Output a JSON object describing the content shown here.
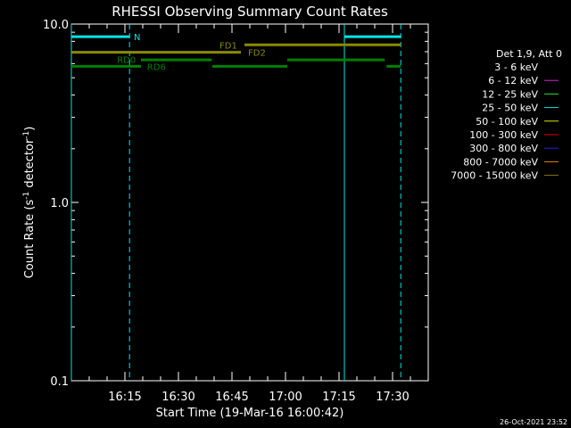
{
  "chart_data": {
    "type": "line",
    "title": "RHESSI Observing Summary Count Rates",
    "xlabel": "Start Time (19-Mar-16 16:00:42)",
    "ylabel_parts": [
      "Count Rate (s",
      "-1",
      " detector",
      "-1",
      ")"
    ],
    "footer_date": "26-Oct-2021 23:52",
    "y_scale": "log",
    "ylim": [
      0.1,
      10.0
    ],
    "y_ticks": [
      {
        "value": 0.1,
        "label": "0.1"
      },
      {
        "value": 1.0,
        "label": "1.0"
      },
      {
        "value": 10.0,
        "label": "10.0"
      }
    ],
    "x_range_minutes": [
      0,
      100
    ],
    "x_ticks": [
      {
        "minute": 15,
        "label": "16:15"
      },
      {
        "minute": 30,
        "label": "16:30"
      },
      {
        "minute": 45,
        "label": "16:45"
      },
      {
        "minute": 60,
        "label": "17:00"
      },
      {
        "minute": 75,
        "label": "17:15"
      },
      {
        "minute": 90,
        "label": "17:30"
      }
    ],
    "legend": {
      "header": "Det 1,9, Att 0",
      "entries": [
        {
          "label": "3 - 6 keV",
          "color": "#000000"
        },
        {
          "label": "6 - 12 keV",
          "color": "#d12bd1"
        },
        {
          "label": "12 - 25 keV",
          "color": "#2ee02e"
        },
        {
          "label": "25 - 50 keV",
          "color": "#00e5e5"
        },
        {
          "label": "50 - 100 keV",
          "color": "#e5e500"
        },
        {
          "label": "100 - 300 keV",
          "color": "#e50000"
        },
        {
          "label": "300 - 800 keV",
          "color": "#2020e5"
        },
        {
          "label": "800 - 7000 keV",
          "color": "#e58a00"
        },
        {
          "label": "7000 - 15000 keV",
          "color": "#8a7a00"
        }
      ]
    },
    "colors": {
      "night": "#00e5e5",
      "flare": "#8a8a00",
      "rd": "#008000"
    },
    "night_lines": [
      {
        "minute": 0,
        "style": "solid"
      },
      {
        "minute": 16.3,
        "style": "dashed"
      },
      {
        "minute": 76.5,
        "style": "solid"
      },
      {
        "minute": 92.3,
        "style": "dashed"
      }
    ],
    "segments": [
      {
        "kind": "night",
        "y": 8.5,
        "x0": 0,
        "x1": 16.3
      },
      {
        "kind": "night",
        "y": 8.5,
        "x0": 76.5,
        "x1": 92.3
      },
      {
        "kind": "flare",
        "y": 6.95,
        "x0": 0,
        "x1": 47.5
      },
      {
        "kind": "flare",
        "y": 7.65,
        "x0": 48.5,
        "x1": 92.3
      },
      {
        "kind": "rd",
        "y": 6.3,
        "x0": 19.5,
        "x1": 39.3
      },
      {
        "kind": "rd",
        "y": 6.3,
        "x0": 60.5,
        "x1": 87.8
      },
      {
        "kind": "rd",
        "y": 5.8,
        "x0": 0,
        "x1": 19.5
      },
      {
        "kind": "rd",
        "y": 5.8,
        "x0": 39.5,
        "x1": 60.5
      },
      {
        "kind": "rd",
        "y": 5.8,
        "x0": 88.3,
        "x1": 92.3
      }
    ],
    "labels": [
      {
        "text": "N",
        "kind": "night",
        "x": 17.5,
        "y": 8.5
      },
      {
        "text": "FD1",
        "kind": "flare",
        "x": 41.5,
        "y": 7.65
      },
      {
        "text": "FD2",
        "kind": "flare",
        "x": 49.5,
        "y": 6.95
      },
      {
        "text": "RD0",
        "kind": "rd",
        "x": 12.8,
        "y": 6.35
      },
      {
        "text": "RD6",
        "kind": "rd",
        "x": 21.2,
        "y": 5.8
      }
    ]
  }
}
